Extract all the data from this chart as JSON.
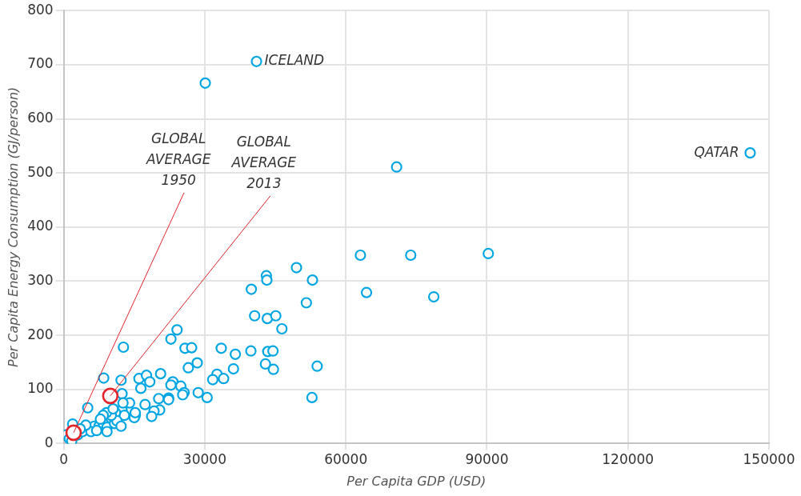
{
  "chart_data": {
    "type": "scatter",
    "xlabel": "Per Capita GDP (USD)",
    "ylabel": "Per Capita Energy Consumption (GJ/person)",
    "xlim": [
      0,
      150000
    ],
    "xticks": [
      0,
      30000,
      60000,
      90000,
      120000,
      150000
    ],
    "ylim": [
      0,
      800
    ],
    "yticks": [
      0,
      100,
      200,
      300,
      400,
      500,
      600,
      700,
      800
    ],
    "grid": true,
    "legend": false,
    "marker": "circle",
    "series": [
      {
        "color": "#00a6e2",
        "x": [
          41000,
          30100,
          146000,
          70800,
          63100,
          73800,
          90300,
          64400,
          78700,
          49500,
          43100,
          43200,
          52900,
          39900,
          51600,
          40600,
          43300,
          45100,
          46400,
          33500,
          36500,
          39800,
          43400,
          44500,
          42900,
          44600,
          53900,
          36100,
          32600,
          31700,
          34000,
          52800,
          24100,
          22800,
          12700,
          25800,
          27200,
          28400,
          26500,
          20600,
          8500,
          12200,
          16000,
          17600,
          18300,
          16400,
          23200,
          22800,
          24900,
          25600,
          25300,
          28600,
          30500,
          22300,
          22300,
          20200,
          12400,
          14000,
          17300,
          20400,
          19200,
          18700,
          12400,
          12900,
          15200,
          15000,
          11000,
          5100,
          1900,
          500,
          1200,
          1700,
          3000,
          4000,
          6500,
          7500,
          8400,
          5800,
          7000,
          9200,
          9200,
          10800,
          11300,
          12200,
          10100,
          9100,
          10500,
          12600,
          15200,
          8400,
          7800,
          4700,
          3500
        ],
        "values": [
          706,
          666,
          537,
          511,
          348,
          348,
          351,
          279,
          271,
          325,
          310,
          302,
          302,
          285,
          260,
          236,
          231,
          236,
          212,
          176,
          165,
          171,
          170,
          171,
          147,
          137,
          143,
          138,
          128,
          118,
          120,
          85,
          210,
          193,
          178,
          176,
          177,
          149,
          140,
          129,
          121,
          117,
          120,
          126,
          114,
          102,
          114,
          108,
          106,
          94,
          90,
          94,
          85,
          84,
          81,
          83,
          92,
          75,
          72,
          62,
          60,
          50,
          62,
          52,
          52,
          48,
          57,
          66,
          36,
          16,
          9,
          5,
          16,
          22,
          32,
          32,
          37,
          22,
          24,
          30,
          22,
          37,
          42,
          32,
          52,
          57,
          64,
          75,
          57,
          52,
          45,
          34,
          27
        ]
      },
      {
        "color": "#e3242b",
        "x": [
          2100,
          9900
        ],
        "values": [
          20,
          88
        ]
      }
    ],
    "annotations": [
      {
        "text": "ICELAND",
        "x": 41000,
        "y": 706
      },
      {
        "text": "QATAR",
        "x": 146000,
        "y": 537
      },
      {
        "text": "GLOBAL AVERAGE 1950",
        "x": 2100,
        "y": 20
      },
      {
        "text": "GLOBAL AVERAGE 2013",
        "x": 9900,
        "y": 88
      }
    ]
  }
}
